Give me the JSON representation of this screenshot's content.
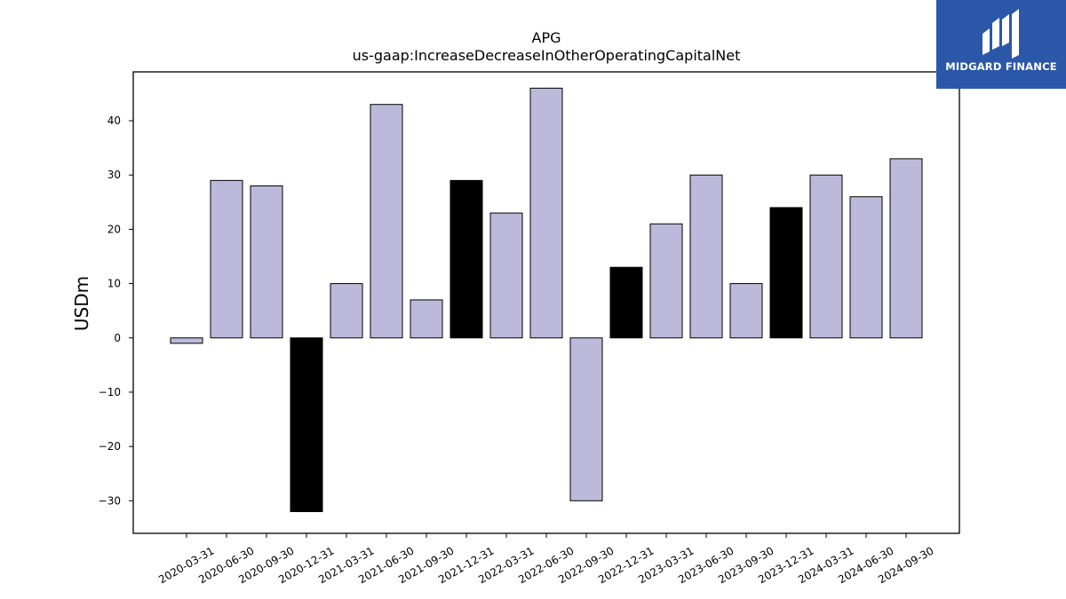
{
  "logo": {
    "text": "MIDGARD FINANCE",
    "background": "#2b57a8"
  },
  "chart_data": {
    "type": "bar",
    "title": "APG",
    "subtitle": "us-gaap:IncreaseDecreaseInOtherOperatingCapitalNet",
    "xlabel": "",
    "ylabel": "USDm",
    "ylim": [
      -36,
      49
    ],
    "yticks": [
      -30,
      -20,
      -10,
      0,
      10,
      20,
      30,
      40
    ],
    "grid": false,
    "categories": [
      "2020-03-31",
      "2020-06-30",
      "2020-09-30",
      "2020-12-31",
      "2021-03-31",
      "2021-06-30",
      "2021-09-30",
      "2021-12-31",
      "2022-03-31",
      "2022-06-30",
      "2022-09-30",
      "2022-12-31",
      "2023-03-31",
      "2023-06-30",
      "2023-09-30",
      "2023-12-31",
      "2024-03-31",
      "2024-06-30",
      "2024-09-30"
    ],
    "values": [
      -1,
      29,
      28,
      -32,
      10,
      43,
      7,
      29,
      23,
      46,
      -30,
      13,
      21,
      30,
      10,
      24,
      30,
      26,
      33
    ],
    "bar_colors": [
      "#bcb9da",
      "#bcb9da",
      "#bcb9da",
      "#000000",
      "#bcb9da",
      "#bcb9da",
      "#bcb9da",
      "#000000",
      "#bcb9da",
      "#bcb9da",
      "#bcb9da",
      "#000000",
      "#bcb9da",
      "#bcb9da",
      "#bcb9da",
      "#000000",
      "#bcb9da",
      "#bcb9da",
      "#bcb9da"
    ]
  }
}
